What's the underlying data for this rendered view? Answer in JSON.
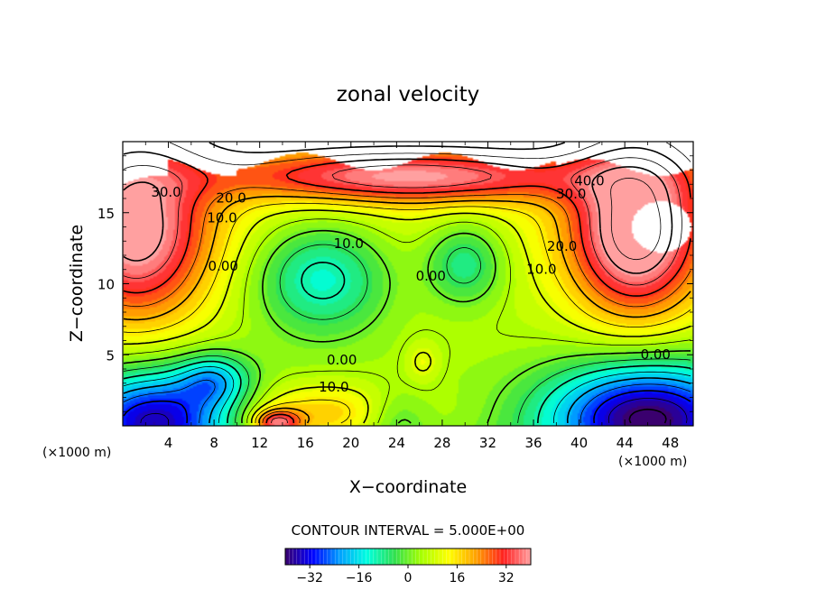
{
  "chart_data": {
    "type": "heatmap",
    "title": "zonal velocity",
    "xlabel": "X−coordinate",
    "ylabel": "Z−coordinate",
    "x_unit_left": "(×1000 m)",
    "x_unit_right": "(×1000 m)",
    "xlim": [
      0,
      50
    ],
    "ylim": [
      0,
      20
    ],
    "x_ticks": [
      4,
      8,
      12,
      16,
      20,
      24,
      28,
      32,
      36,
      40,
      44,
      48
    ],
    "y_ticks": [
      5,
      10,
      15
    ],
    "contour_interval_text": "CONTOUR INTERVAL = 5.000E+00",
    "colorbar": {
      "range": [
        -40,
        40
      ],
      "ticks": [
        -32,
        -16,
        0,
        16,
        32
      ],
      "colors": [
        "#3a006e",
        "#0000ff",
        "#00a0ff",
        "#00ffe0",
        "#30e050",
        "#a8ff00",
        "#ffff00",
        "#ffa000",
        "#ff2020",
        "#ffa0a0"
      ]
    },
    "contour_labels": [
      {
        "text": "30.0",
        "x": 3.8,
        "z": 16.4
      },
      {
        "text": "20.0",
        "x": 9.5,
        "z": 16.0
      },
      {
        "text": "10.0",
        "x": 8.7,
        "z": 14.6
      },
      {
        "text": "0.00",
        "x": 8.8,
        "z": 11.2
      },
      {
        "text": "10.0",
        "x": 19.8,
        "z": 12.8
      },
      {
        "text": "0.00",
        "x": 27.0,
        "z": 10.5
      },
      {
        "text": "0.00",
        "x": 19.2,
        "z": 4.6
      },
      {
        "text": "10.0",
        "x": 18.5,
        "z": 2.7
      },
      {
        "text": "10.0",
        "x": 36.7,
        "z": 11.0
      },
      {
        "text": "20.0",
        "x": 38.5,
        "z": 12.6
      },
      {
        "text": "30.0",
        "x": 39.3,
        "z": 16.3
      },
      {
        "text": "40.0",
        "x": 40.9,
        "z": 17.2
      },
      {
        "text": "0.00",
        "x": 46.7,
        "z": 5.0
      }
    ],
    "features": [
      {
        "kind": "jet",
        "x": 1.2,
        "z": 13.5,
        "value": 38,
        "rx": 6.5,
        "rz": 6.5
      },
      {
        "kind": "jet",
        "x": 45.0,
        "z": 13.6,
        "value": 44,
        "rx": 5.8,
        "rz": 6.0
      },
      {
        "kind": "jet",
        "x": 25.0,
        "z": 17.5,
        "value": 32,
        "rx": 16.0,
        "rz": 1.8
      },
      {
        "kind": "core",
        "x": 17.5,
        "z": 10.5,
        "value": -14,
        "rx": 6.0,
        "rz": 4.0
      },
      {
        "kind": "core",
        "x": 30.0,
        "z": 11.5,
        "value": -10,
        "rx": 3.5,
        "rz": 3.0
      },
      {
        "kind": "core",
        "x": 8.0,
        "z": 3.2,
        "value": -12,
        "rx": 3.0,
        "rz": 1.8
      },
      {
        "kind": "surface",
        "x": 3.0,
        "z": 0.4,
        "value": -36,
        "rx": 7.0,
        "rz": 3.5
      },
      {
        "kind": "surface",
        "x": 46.0,
        "z": 0.6,
        "value": -40,
        "rx": 8.5,
        "rz": 3.8
      },
      {
        "kind": "surface",
        "x": 24.0,
        "z": 0.5,
        "value": -6,
        "rx": 3.0,
        "rz": 2.0
      },
      {
        "kind": "surface",
        "x": 17.0,
        "z": 0.8,
        "value": 20,
        "rx": 9.0,
        "rz": 2.2
      },
      {
        "kind": "surface",
        "x": 13.5,
        "z": 0.2,
        "value": 32,
        "rx": 2.0,
        "rz": 0.9
      },
      {
        "kind": "bubble",
        "x": 26.3,
        "z": 4.5,
        "value": 13,
        "rx": 1.5,
        "rz": 1.4
      }
    ]
  }
}
